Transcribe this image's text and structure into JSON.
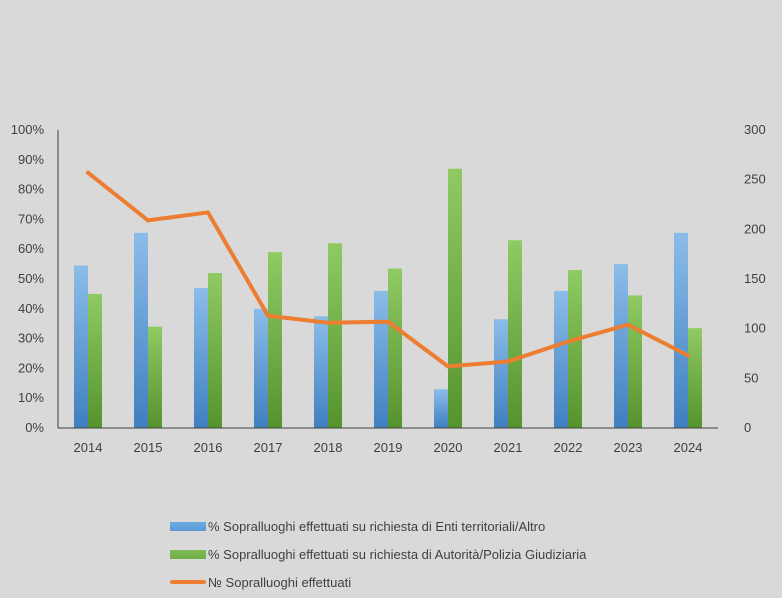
{
  "chart_data": {
    "type": "bar",
    "categories": [
      "2014",
      "2015",
      "2016",
      "2017",
      "2018",
      "2019",
      "2020",
      "2021",
      "2022",
      "2023",
      "2024"
    ],
    "series": [
      {
        "name": "% Sopralluoghi effettuati su richiesta di Enti territoriali/Altro",
        "type": "bar",
        "axis": "left",
        "values": [
          54.5,
          65.5,
          47,
          40,
          37.5,
          46,
          13,
          36.5,
          46,
          55,
          65.5
        ]
      },
      {
        "name": "% Sopralluoghi effettuati su richiesta di Autorità/Polizia Giudiziaria",
        "type": "bar",
        "axis": "left",
        "values": [
          45,
          34,
          52,
          59,
          62,
          53.5,
          87,
          63,
          53,
          44.5,
          33.5
        ]
      },
      {
        "name": "№ Sopralluoghi effettuati",
        "type": "line",
        "axis": "right",
        "values": [
          257,
          209,
          217,
          113,
          106,
          107,
          62,
          67,
          87,
          104,
          73
        ]
      }
    ],
    "left_axis": {
      "ylim": [
        0,
        100
      ],
      "ticks": [
        "0%",
        "10%",
        "20%",
        "30%",
        "40%",
        "50%",
        "60%",
        "70%",
        "80%",
        "90%",
        "100%"
      ]
    },
    "right_axis": {
      "ylim": [
        0,
        300
      ],
      "ticks": [
        "0",
        "50",
        "100",
        "150",
        "200",
        "250",
        "300"
      ]
    },
    "grid": false,
    "legend_position": "bottom",
    "colors": {
      "bar1": "#5b9bd5",
      "bar2": "#70ad47",
      "line": "#ed7d31",
      "background": "#d9d9d9"
    }
  }
}
